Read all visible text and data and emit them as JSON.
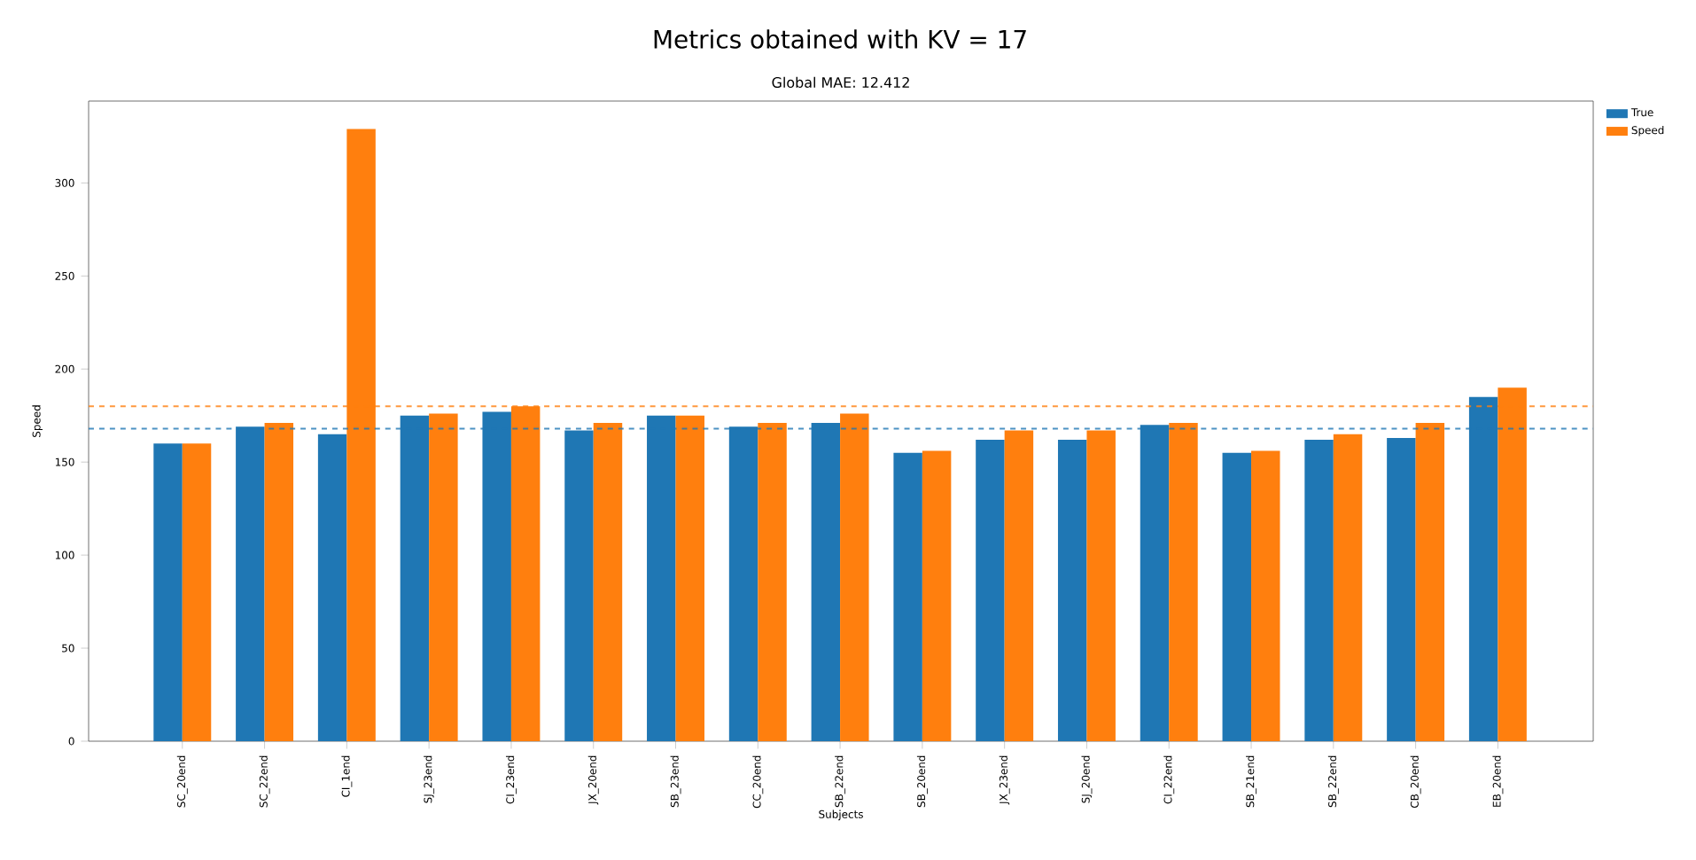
{
  "chart_data": {
    "type": "bar",
    "title": "Metrics obtained with KV = 17",
    "subtitle": "Global MAE: 12.412",
    "xlabel": "Subjects",
    "ylabel": "Speed",
    "categories": [
      "SC_20end",
      "SC_22end",
      "CI_1end",
      "SJ_23end",
      "CI_23end",
      "JX_20end",
      "SB_23end",
      "CC_20end",
      "SB_22end",
      "SB_20end",
      "JX_23end",
      "SJ_20end",
      "CI_22end",
      "SB_21end",
      "SB_22end",
      "CB_20end",
      "EB_20end"
    ],
    "series": [
      {
        "name": "True",
        "color": "#1f77b4",
        "values": [
          160,
          169,
          165,
          175,
          177,
          167,
          175,
          169,
          171,
          155,
          162,
          162,
          170,
          155,
          162,
          163,
          185
        ]
      },
      {
        "name": "Speed",
        "color": "#ff7f0e",
        "values": [
          160,
          171,
          329,
          176,
          180,
          171,
          175,
          171,
          176,
          156,
          167,
          167,
          171,
          156,
          165,
          171,
          190
        ]
      }
    ],
    "ref_lines": [
      {
        "axis": "y",
        "value": 168,
        "color": "#1f77b4",
        "line_style": "dashed"
      },
      {
        "axis": "y",
        "value": 180,
        "color": "#ff7f0e",
        "line_style": "dashed"
      }
    ],
    "ylim": [
      0,
      344
    ],
    "yticks": [
      0,
      50,
      100,
      150,
      200,
      250,
      300
    ],
    "grid": false,
    "legend": "top right"
  }
}
